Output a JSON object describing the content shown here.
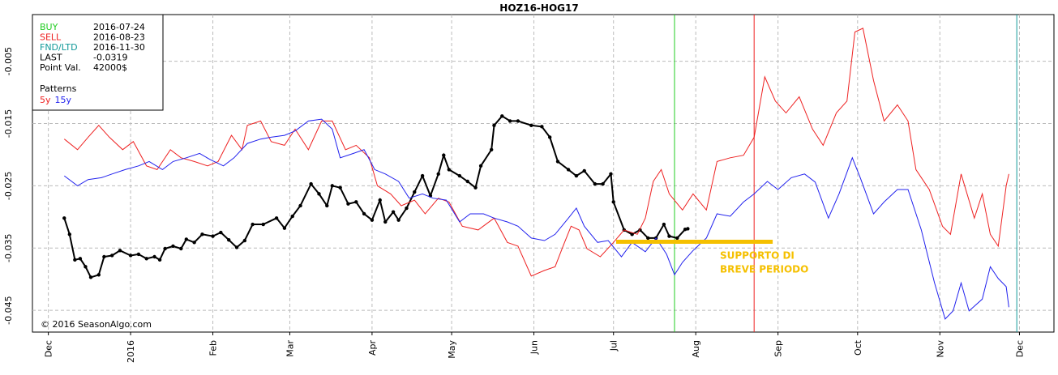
{
  "chart_data": {
    "type": "line",
    "title": "HOZ16-HOG17",
    "xlim": [
      -6,
      379
    ],
    "ylim": [
      -0.0485,
      0.0025
    ],
    "xticks": [
      {
        "value": 0,
        "label": "Dec"
      },
      {
        "value": 31,
        "label": "2016"
      },
      {
        "value": 62,
        "label": "Feb"
      },
      {
        "value": 91,
        "label": "Mar"
      },
      {
        "value": 122,
        "label": "Apr"
      },
      {
        "value": 152,
        "label": "May"
      },
      {
        "value": 183,
        "label": "Jun"
      },
      {
        "value": 213,
        "label": "Jul"
      },
      {
        "value": 244,
        "label": "Aug"
      },
      {
        "value": 275,
        "label": "Sep"
      },
      {
        "value": 305,
        "label": "Oct"
      },
      {
        "value": 336,
        "label": "Nov"
      },
      {
        "value": 366,
        "label": "Dec"
      }
    ],
    "yticks": [
      -0.045,
      -0.035,
      -0.025,
      -0.015,
      -0.005
    ],
    "grid": true,
    "info": [
      {
        "label": "BUY",
        "value": "2016-07-24",
        "color": "#22cc22",
        "x": 236
      },
      {
        "label": "SELL",
        "value": "2016-08-23",
        "color": "#ee2222",
        "x": 266
      },
      {
        "label": "FND/LTD",
        "value": "2016-11-30",
        "color": "#119999",
        "x": 365
      },
      {
        "label": "LAST",
        "value": -0.0319
      },
      {
        "label": "Point Val.",
        "value": "42000$"
      }
    ],
    "legend_title": "Patterns",
    "series": [
      {
        "color": "#000000",
        "markers": true,
        "x": [
          6,
          8,
          10,
          12,
          14,
          16,
          19,
          21,
          24,
          27,
          31,
          34,
          37,
          40,
          42,
          44,
          47,
          50,
          52,
          55,
          58,
          62,
          65,
          68,
          71,
          74,
          77,
          81,
          86,
          89,
          92,
          95,
          99,
          102,
          105,
          107,
          110,
          113,
          116,
          119,
          122,
          125,
          127,
          130,
          132,
          135,
          138,
          141,
          144,
          147,
          149,
          151,
          155,
          158,
          161,
          163,
          167,
          168,
          171,
          174,
          177,
          182,
          186,
          189,
          192,
          196,
          199,
          202,
          206,
          209,
          212,
          213,
          217,
          220,
          223,
          226,
          229,
          232,
          234,
          237,
          240,
          241
        ],
        "values": [
          -0.0302,
          -0.0328,
          -0.0369,
          -0.0367,
          -0.038,
          -0.0397,
          -0.0393,
          -0.0364,
          -0.0362,
          -0.0354,
          -0.0362,
          -0.036,
          -0.0367,
          -0.0364,
          -0.0369,
          -0.0351,
          -0.0347,
          -0.0351,
          -0.0336,
          -0.0341,
          -0.0328,
          -0.0331,
          -0.0325,
          -0.0337,
          -0.0349,
          -0.0338,
          -0.0312,
          -0.0312,
          -0.0302,
          -0.0318,
          -0.0299,
          -0.0282,
          -0.0247,
          -0.0263,
          -0.0282,
          -0.025,
          -0.0253,
          -0.0279,
          -0.0276,
          -0.0295,
          -0.0305,
          -0.0273,
          -0.0308,
          -0.0292,
          -0.0305,
          -0.0286,
          -0.026,
          -0.0234,
          -0.0266,
          -0.0231,
          -0.0201,
          -0.0224,
          -0.0234,
          -0.0243,
          -0.0253,
          -0.0218,
          -0.0192,
          -0.0153,
          -0.0138,
          -0.0146,
          -0.0146,
          -0.0153,
          -0.0155,
          -0.0172,
          -0.0211,
          -0.0224,
          -0.0234,
          -0.0226,
          -0.0247,
          -0.0247,
          -0.0231,
          -0.0276,
          -0.0321,
          -0.0328,
          -0.0321,
          -0.0334,
          -0.0334,
          -0.0312,
          -0.0331,
          -0.0334,
          -0.032,
          -0.0319
        ]
      },
      {
        "name": "5y",
        "color": "#ee2222",
        "x": [
          6,
          11,
          15,
          19,
          23,
          28,
          32,
          37,
          41,
          46,
          50,
          55,
          60,
          64,
          69,
          73,
          75,
          80,
          84,
          89,
          93,
          98,
          103,
          107,
          112,
          116,
          121,
          124,
          129,
          133,
          138,
          142,
          147,
          151,
          156,
          162,
          168,
          173,
          177,
          182,
          187,
          191,
          194,
          197,
          200,
          203,
          208,
          213,
          217,
          222,
          225,
          228,
          231,
          234,
          239,
          243,
          248,
          252,
          257,
          262,
          266,
          270,
          274,
          278,
          283,
          288,
          292,
          297,
          301,
          304,
          307,
          311,
          315,
          320,
          324,
          327,
          332,
          337,
          340,
          344,
          349,
          352,
          355,
          358,
          361,
          362
        ],
        "values": [
          -0.0175,
          -0.0192,
          -0.0172,
          -0.0153,
          -0.0172,
          -0.0192,
          -0.0179,
          -0.0218,
          -0.0224,
          -0.0192,
          -0.0205,
          -0.0211,
          -0.0218,
          -0.0211,
          -0.0169,
          -0.0192,
          -0.0153,
          -0.0146,
          -0.0179,
          -0.0185,
          -0.0159,
          -0.0192,
          -0.0146,
          -0.0146,
          -0.0192,
          -0.0185,
          -0.0205,
          -0.025,
          -0.0263,
          -0.0282,
          -0.0273,
          -0.0295,
          -0.027,
          -0.0276,
          -0.0315,
          -0.0321,
          -0.0302,
          -0.0341,
          -0.0347,
          -0.0395,
          -0.0386,
          -0.038,
          -0.0347,
          -0.0315,
          -0.0321,
          -0.0351,
          -0.0364,
          -0.0341,
          -0.0321,
          -0.0328,
          -0.0302,
          -0.0243,
          -0.0224,
          -0.0263,
          -0.0289,
          -0.0263,
          -0.0289,
          -0.0211,
          -0.0205,
          -0.0201,
          -0.0172,
          -0.0075,
          -0.0114,
          -0.0133,
          -0.0107,
          -0.0159,
          -0.0185,
          -0.0133,
          -0.0114,
          -0.0003,
          0.0003,
          -0.0081,
          -0.0146,
          -0.012,
          -0.0146,
          -0.0224,
          -0.0256,
          -0.0315,
          -0.0328,
          -0.0231,
          -0.0302,
          -0.0263,
          -0.0328,
          -0.0347,
          -0.025,
          -0.0231
        ]
      },
      {
        "name": "15y",
        "color": "#2222ee",
        "x": [
          6,
          11,
          15,
          20,
          24,
          29,
          34,
          38,
          43,
          47,
          52,
          57,
          61,
          66,
          70,
          75,
          80,
          84,
          89,
          93,
          98,
          103,
          107,
          110,
          115,
          119,
          123,
          127,
          132,
          136,
          141,
          145,
          150,
          155,
          159,
          164,
          168,
          173,
          177,
          182,
          187,
          191,
          196,
          199,
          202,
          207,
          211,
          216,
          220,
          225,
          229,
          233,
          236,
          239,
          243,
          248,
          252,
          257,
          262,
          266,
          271,
          275,
          280,
          285,
          289,
          294,
          298,
          303,
          306,
          311,
          315,
          320,
          324,
          329,
          334,
          338,
          341,
          344,
          347,
          352,
          355,
          358,
          361,
          362
        ],
        "values": [
          -0.0234,
          -0.025,
          -0.024,
          -0.0237,
          -0.0231,
          -0.0224,
          -0.0218,
          -0.0211,
          -0.0224,
          -0.0211,
          -0.0205,
          -0.0198,
          -0.0208,
          -0.0218,
          -0.0205,
          -0.0182,
          -0.0175,
          -0.0172,
          -0.0169,
          -0.0162,
          -0.0146,
          -0.0143,
          -0.0159,
          -0.0205,
          -0.0198,
          -0.0192,
          -0.0224,
          -0.0231,
          -0.0243,
          -0.027,
          -0.0263,
          -0.027,
          -0.0273,
          -0.0308,
          -0.0295,
          -0.0295,
          -0.0302,
          -0.0308,
          -0.0315,
          -0.0334,
          -0.0338,
          -0.0328,
          -0.0302,
          -0.0286,
          -0.0315,
          -0.0341,
          -0.0338,
          -0.0364,
          -0.0341,
          -0.0356,
          -0.0334,
          -0.036,
          -0.0393,
          -0.0373,
          -0.0354,
          -0.0334,
          -0.0295,
          -0.0299,
          -0.0276,
          -0.0263,
          -0.0243,
          -0.0256,
          -0.0237,
          -0.0231,
          -0.0244,
          -0.0302,
          -0.0263,
          -0.0205,
          -0.0237,
          -0.0295,
          -0.0276,
          -0.0256,
          -0.0256,
          -0.0321,
          -0.0406,
          -0.0464,
          -0.0451,
          -0.0406,
          -0.0451,
          -0.0432,
          -0.038,
          -0.0399,
          -0.0412,
          -0.0445
        ]
      }
    ],
    "support": {
      "lines": [
        "SUPPORTO DI",
        "BREVE PERIODO"
      ],
      "x": [
        214,
        273
      ],
      "y": -0.034,
      "color": "#f5c000"
    },
    "credit": "© 2016 SeasonAlgo.com"
  }
}
